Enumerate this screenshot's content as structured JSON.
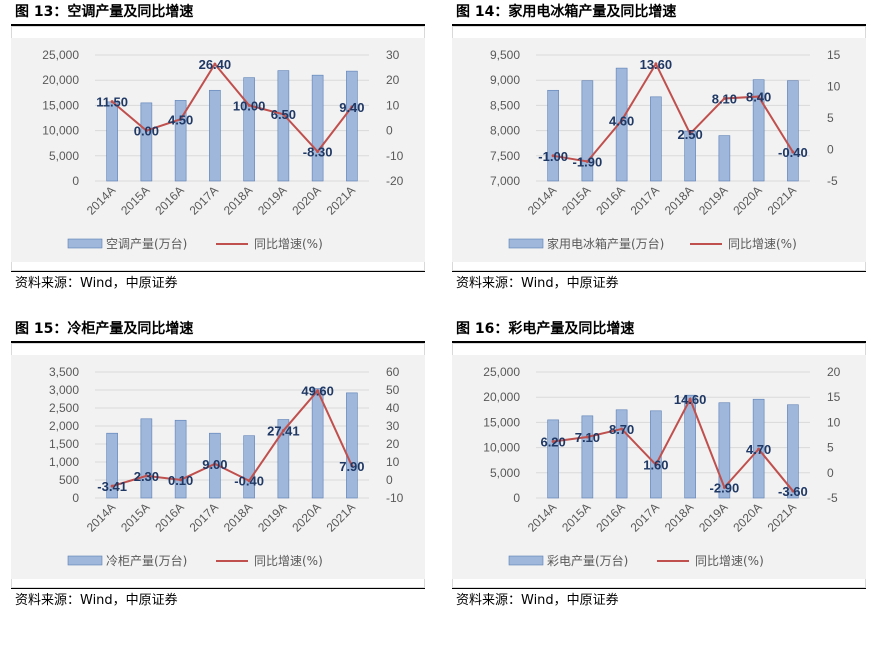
{
  "colors": {
    "bar_fill": "#9FB7DA",
    "bar_stroke": "#5B7FB6",
    "line": "#C0504D",
    "plot_bg": "#F2F2F2",
    "grid": "#D9D9D9",
    "axis_text": "#595959",
    "label_text": "#1F3864"
  },
  "charts": [
    {
      "title": "图 13：空调产量及同比增速",
      "source": "资料来源：Wind，中原证券"
    },
    {
      "title": "图 14：家用电冰箱产量及同比增速",
      "source": "资料来源：Wind，中原证券"
    },
    {
      "title": "图 15：冷柜产量及同比增速",
      "source": "资料来源：Wind，中原证券"
    },
    {
      "title": "图 16：彩电产量及同比增速",
      "source": "资料来源：Wind，中原证券"
    }
  ],
  "chart_data": [
    {
      "type": "bar+line",
      "title": "图 13：空调产量及同比增速",
      "categories": [
        "2014A",
        "2015A",
        "2016A",
        "2017A",
        "2018A",
        "2019A",
        "2020A",
        "2021A"
      ],
      "series": [
        {
          "name": "空调产量(万台)",
          "type": "bar",
          "axis": "left",
          "values": [
            15700,
            15500,
            16000,
            18000,
            20500,
            21900,
            21000,
            21800
          ]
        },
        {
          "name": "同比增速(%)",
          "type": "line",
          "axis": "right",
          "values": [
            11.5,
            0.0,
            4.5,
            26.4,
            10.0,
            6.5,
            -8.3,
            9.4
          ],
          "labels": [
            "11.50",
            "0.00",
            "4.50",
            "26.40",
            "10.00",
            "6.50",
            "-8.30",
            "9.40"
          ]
        }
      ],
      "ylim_left": [
        0,
        25000
      ],
      "yticks_left": [
        "0",
        "5,000",
        "10,000",
        "15,000",
        "20,000",
        "25,000"
      ],
      "ylim_right": [
        -20,
        30
      ],
      "yticks_right": [
        "-20",
        "-10",
        "0",
        "10",
        "20",
        "30"
      ],
      "legend_position": "bottom"
    },
    {
      "type": "bar+line",
      "title": "图 14：家用电冰箱产量及同比增速",
      "categories": [
        "2014A",
        "2015A",
        "2016A",
        "2017A",
        "2018A",
        "2019A",
        "2020A",
        "2021A"
      ],
      "series": [
        {
          "name": "家用电冰箱产量(万台)",
          "type": "bar",
          "axis": "left",
          "values": [
            8800,
            8990,
            9240,
            8670,
            7990,
            7900,
            9010,
            8990
          ]
        },
        {
          "name": "同比增速(%)",
          "type": "line",
          "axis": "right",
          "values": [
            -1.0,
            -1.9,
            4.6,
            13.6,
            2.5,
            8.1,
            8.4,
            -0.4
          ],
          "labels": [
            "-1.00",
            "-1.90",
            "4.60",
            "13.60",
            "2.50",
            "8.10",
            "8.40",
            "-0.40"
          ]
        }
      ],
      "ylim_left": [
        7000,
        9500
      ],
      "yticks_left": [
        "7,000",
        "7,500",
        "8,000",
        "8,500",
        "9,000",
        "9,500"
      ],
      "ylim_right": [
        -5,
        15
      ],
      "yticks_right": [
        "-5",
        "0",
        "5",
        "10",
        "15"
      ],
      "legend_position": "bottom"
    },
    {
      "type": "bar+line",
      "title": "图 15：冷柜产量及同比增速",
      "categories": [
        "2014A",
        "2015A",
        "2016A",
        "2017A",
        "2018A",
        "2019A",
        "2020A",
        "2021A"
      ],
      "series": [
        {
          "name": "冷柜产量(万台)",
          "type": "bar",
          "axis": "left",
          "values": [
            1800,
            2200,
            2160,
            1800,
            1730,
            2180,
            3040,
            2920
          ]
        },
        {
          "name": "同比增速(%)",
          "type": "line",
          "axis": "right",
          "values": [
            -3.41,
            2.3,
            0.1,
            9.0,
            -0.4,
            27.41,
            49.6,
            7.9
          ],
          "labels": [
            "-3.41",
            "2.30",
            "0.10",
            "9.00",
            "-0.40",
            "27.41",
            "49.60",
            "7.90"
          ]
        }
      ],
      "ylim_left": [
        0,
        3500
      ],
      "yticks_left": [
        "0",
        "500",
        "1,000",
        "1,500",
        "2,000",
        "2,500",
        "3,000",
        "3,500"
      ],
      "ylim_right": [
        -10,
        60
      ],
      "yticks_right": [
        "-10",
        "0",
        "10",
        "20",
        "30",
        "40",
        "50",
        "60"
      ],
      "legend_position": "bottom"
    },
    {
      "type": "bar+line",
      "title": "图 16：彩电产量及同比增速",
      "categories": [
        "2014A",
        "2015A",
        "2016A",
        "2017A",
        "2018A",
        "2019A",
        "2020A",
        "2021A"
      ],
      "series": [
        {
          "name": "彩电产量(万台)",
          "type": "bar",
          "axis": "left",
          "values": [
            15500,
            16300,
            17500,
            17300,
            20400,
            18900,
            19600,
            18500
          ]
        },
        {
          "name": "同比增速(%)",
          "type": "line",
          "axis": "right",
          "values": [
            6.2,
            7.1,
            8.7,
            1.6,
            14.6,
            -2.9,
            4.7,
            -3.6
          ],
          "labels": [
            "6.20",
            "7.10",
            "8.70",
            "1.60",
            "14.60",
            "-2.90",
            "4.70",
            "-3.60"
          ]
        }
      ],
      "ylim_left": [
        0,
        25000
      ],
      "yticks_left": [
        "0",
        "5,000",
        "10,000",
        "15,000",
        "20,000",
        "25,000"
      ],
      "ylim_right": [
        -5,
        20
      ],
      "yticks_right": [
        "-5",
        "0",
        "5",
        "10",
        "15",
        "20"
      ],
      "legend_position": "bottom"
    }
  ]
}
